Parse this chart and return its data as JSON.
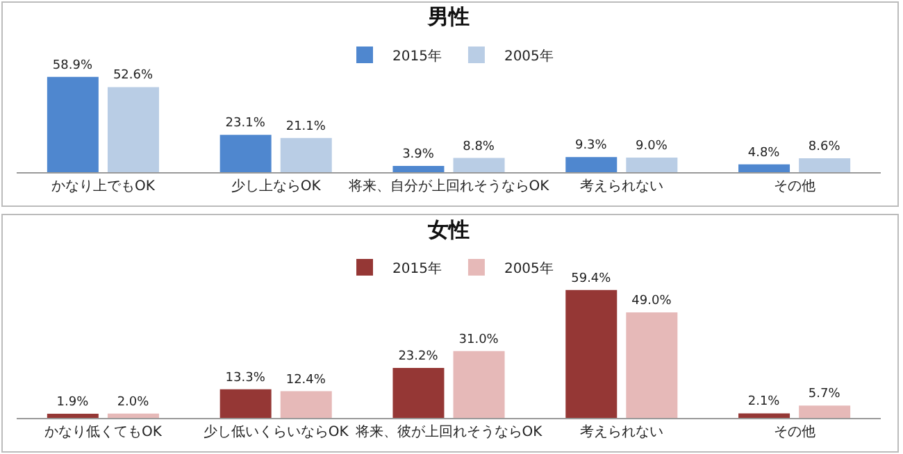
{
  "chart_data": [
    {
      "type": "bar",
      "title": "男性",
      "categories": [
        "かなり上でもOK",
        "少し上ならOK",
        "将来、自分が上回れそうならOK",
        "考えられない",
        "その他"
      ],
      "legend": "top",
      "series": [
        {
          "name": "2015年",
          "color": "#4f87cf",
          "values": [
            58.9,
            23.1,
            3.9,
            9.3,
            4.8
          ],
          "value_labels": [
            "58.9%",
            "23.1%",
            "3.9%",
            "9.3%",
            "4.8%"
          ]
        },
        {
          "name": "2005年",
          "color": "#b9cde5",
          "values": [
            52.6,
            21.1,
            8.8,
            9.0,
            8.6
          ],
          "value_labels": [
            "52.6%",
            "21.1%",
            "8.8%",
            "9.0%",
            "8.6%"
          ]
        }
      ]
    },
    {
      "type": "bar",
      "title": "女性",
      "categories": [
        "かなり低くてもOK",
        "少し低いくらいならOK",
        "将来、彼が上回れそうならOK",
        "考えられない",
        "その他"
      ],
      "legend": "top",
      "series": [
        {
          "name": "2015年",
          "color": "#953735",
          "values": [
            1.9,
            13.3,
            23.2,
            59.4,
            2.1
          ],
          "value_labels": [
            "1.9%",
            "13.3%",
            "23.2%",
            "59.4%",
            "2.1%"
          ]
        },
        {
          "name": "2005年",
          "color": "#e6b9b8",
          "values": [
            2.0,
            12.4,
            31.0,
            49.0,
            5.7
          ],
          "value_labels": [
            "2.0%",
            "12.4%",
            "31.0%",
            "49.0%",
            "5.7%"
          ]
        }
      ]
    }
  ]
}
